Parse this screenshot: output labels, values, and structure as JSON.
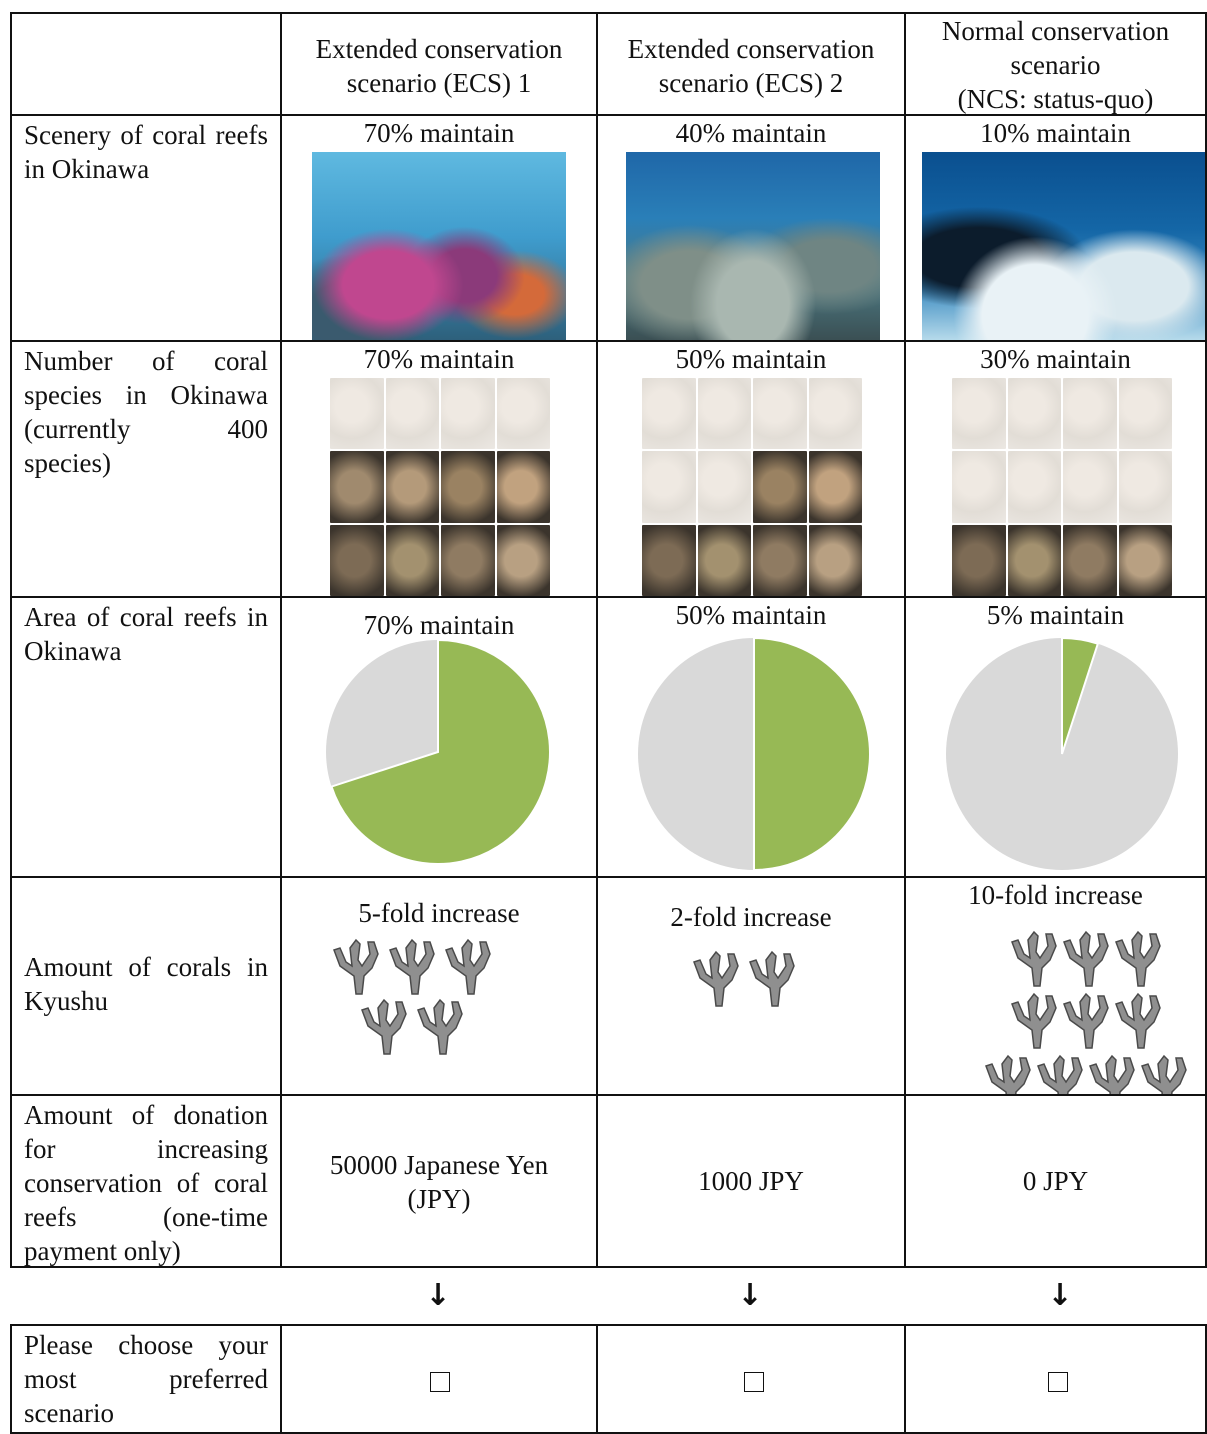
{
  "header": {
    "col1": [
      "Extended conservation",
      "scenario (ECS) 1"
    ],
    "col2": [
      "Extended conservation",
      "scenario (ECS) 2"
    ],
    "col3": [
      "Normal conservation",
      "scenario",
      "(NCS: status-quo)"
    ]
  },
  "rows": {
    "scenery": {
      "label": "Scenery of coral reefs in Okinawa",
      "values": [
        "70% maintain",
        "40% maintain",
        "10% maintain"
      ]
    },
    "species": {
      "label": "Number of coral species in Okinawa (currently 400 species)",
      "values": [
        "70% maintain",
        "50% maintain",
        "30% maintain"
      ]
    },
    "area": {
      "label": "Area of coral reefs in Okinawa",
      "values": [
        "70% maintain",
        "50% maintain",
        "5% maintain"
      ],
      "fractions": [
        0.7,
        0.5,
        0.05
      ],
      "colors": {
        "maintain": "#97b955",
        "lost": "#d9d9d9"
      }
    },
    "kyushu": {
      "label": "Amount of corals in Kyushu",
      "values": [
        "5-fold increase",
        "2-fold increase",
        "10-fold increase"
      ],
      "counts": [
        5,
        2,
        10
      ]
    },
    "donation": {
      "label": "Amount of donation for increasing conservation of coral reefs (one-time payment only)",
      "values": [
        [
          "50000 Japanese Yen",
          "(JPY)"
        ],
        [
          "1000 JPY"
        ],
        [
          "0 JPY"
        ]
      ]
    },
    "choice": {
      "label": "Please choose your most preferred scenario",
      "checkbox_symbol": "☐"
    }
  },
  "arrow_symbol": "↓"
}
